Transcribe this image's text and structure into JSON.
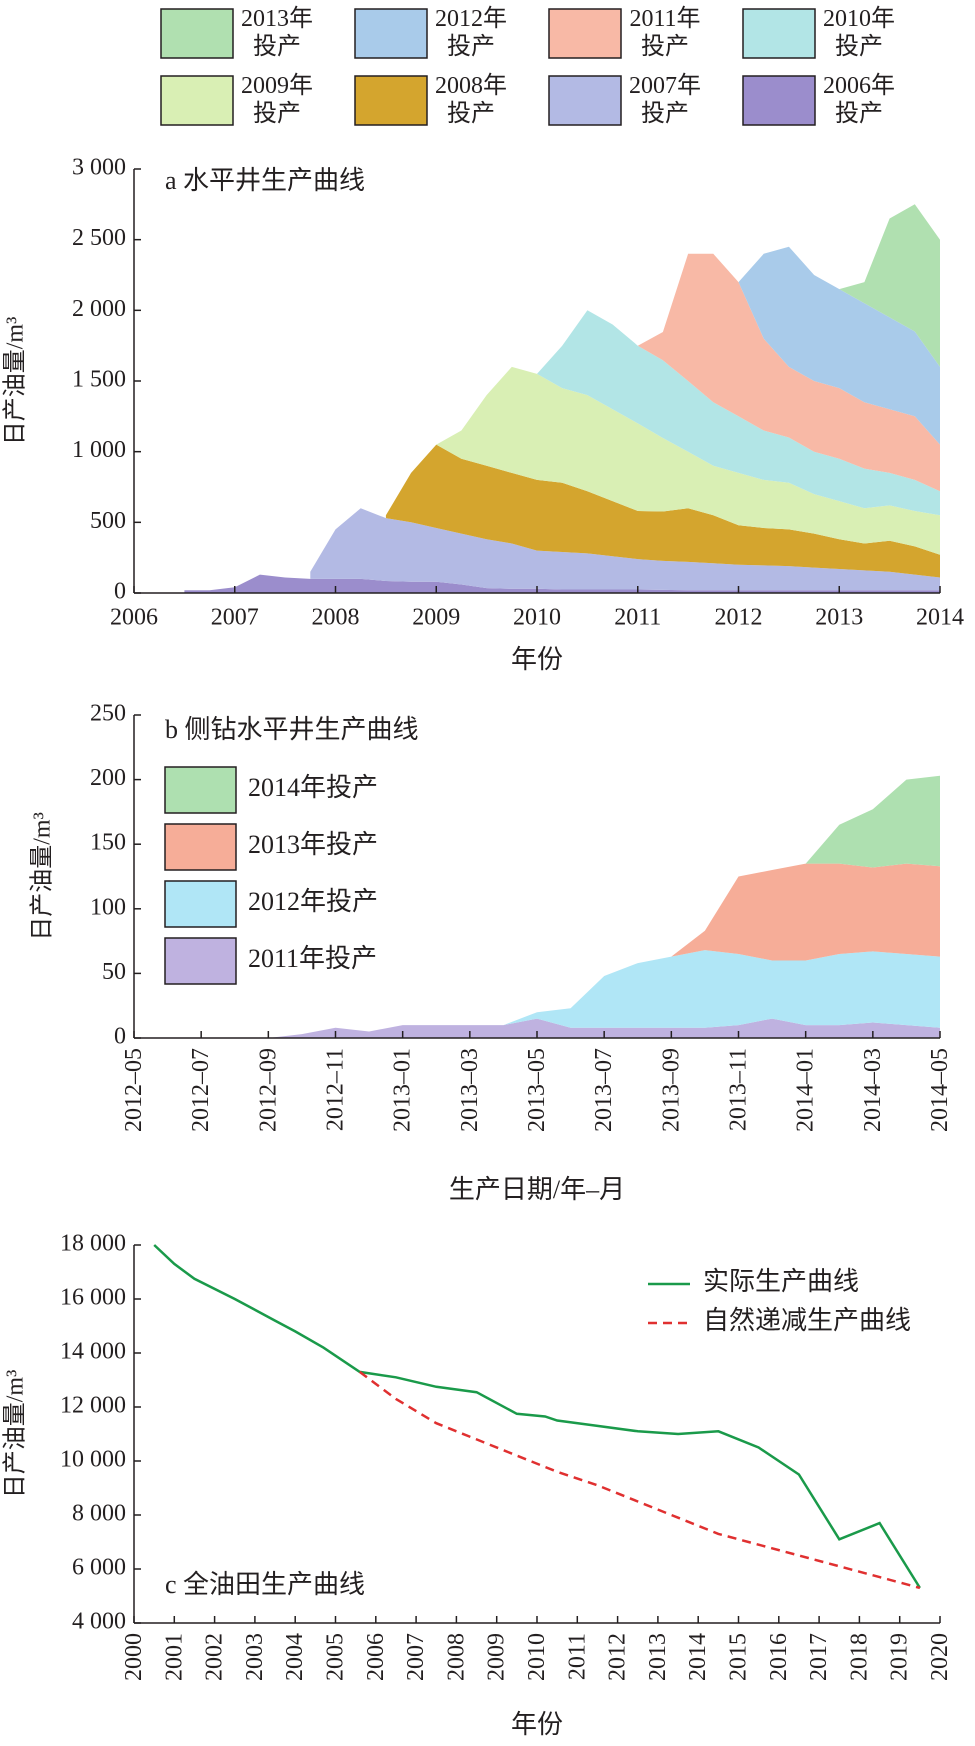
{
  "chart_data": [
    {
      "type": "area",
      "title": "a 水平井生产曲线",
      "xlabel": "年份",
      "ylabel": "日产油量/m³",
      "legend": "top",
      "x": [
        2006,
        2006.25,
        2006.5,
        2006.75,
        2007,
        2007.25,
        2007.5,
        2007.75,
        2008,
        2008.25,
        2008.5,
        2008.75,
        2009,
        2009.25,
        2009.5,
        2009.75,
        2010,
        2010.25,
        2010.5,
        2010.75,
        2011,
        2011.25,
        2011.5,
        2011.75,
        2012,
        2012.25,
        2012.5,
        2012.75,
        2013,
        2013.25,
        2013.5,
        2013.75,
        2014
      ],
      "xlim": [
        2006,
        2014
      ],
      "xticks": [
        2006,
        2007,
        2008,
        2009,
        2010,
        2011,
        2012,
        2013,
        2014
      ],
      "ylim": [
        0,
        3000
      ],
      "yticks": [
        0,
        500,
        {
          "value": 1000,
          "label": "1 000"
        },
        {
          "value": 1500,
          "label": "1 500"
        },
        {
          "value": 2000,
          "label": "2 000"
        },
        {
          "value": 2500,
          "label": "2 500"
        },
        {
          "value": 3000,
          "label": "3 000"
        }
      ],
      "series": [
        {
          "name": "2013年投产",
          "color": "#b0e0b0",
          "values": [
            null,
            null,
            null,
            null,
            null,
            null,
            null,
            null,
            null,
            null,
            null,
            null,
            null,
            null,
            null,
            null,
            null,
            null,
            null,
            null,
            null,
            null,
            null,
            null,
            null,
            null,
            null,
            null,
            0,
            150,
            700,
            900,
            900
          ]
        },
        {
          "name": "2012年投产",
          "color": "#a9cbea",
          "values": [
            null,
            null,
            null,
            null,
            null,
            null,
            null,
            null,
            null,
            null,
            null,
            null,
            null,
            null,
            null,
            null,
            null,
            null,
            null,
            null,
            null,
            null,
            null,
            null,
            0,
            600,
            850,
            750,
            700,
            700,
            650,
            600,
            550
          ]
        },
        {
          "name": "2011年投产",
          "color": "#f8b9a6",
          "values": [
            null,
            null,
            null,
            null,
            null,
            null,
            null,
            null,
            null,
            null,
            null,
            null,
            null,
            null,
            null,
            null,
            null,
            null,
            null,
            null,
            0,
            200,
            900,
            1050,
            950,
            650,
            500,
            500,
            500,
            470,
            450,
            450,
            330
          ]
        },
        {
          "name": "2010年投产",
          "color": "#b2e5e6",
          "values": [
            null,
            null,
            null,
            null,
            null,
            null,
            null,
            null,
            null,
            null,
            null,
            null,
            null,
            null,
            null,
            null,
            0,
            300,
            600,
            600,
            550,
            550,
            500,
            450,
            400,
            350,
            320,
            300,
            300,
            280,
            230,
            220,
            170
          ]
        },
        {
          "name": "2009年投产",
          "color": "#d9efb4",
          "values": [
            null,
            null,
            null,
            null,
            null,
            null,
            null,
            null,
            null,
            null,
            null,
            null,
            0,
            200,
            500,
            750,
            750,
            670,
            680,
            650,
            620,
            520,
            400,
            350,
            370,
            340,
            330,
            280,
            270,
            250,
            250,
            250,
            280
          ]
        },
        {
          "name": "2008年投产",
          "color": "#d4a52e",
          "values": [
            null,
            null,
            null,
            null,
            null,
            null,
            null,
            null,
            null,
            null,
            20,
            350,
            590,
            530,
            520,
            500,
            500,
            490,
            440,
            390,
            340,
            350,
            380,
            340,
            280,
            265,
            260,
            240,
            210,
            190,
            220,
            200,
            160
          ]
        },
        {
          "name": "2007年投产",
          "color": "#b3bae4",
          "values": [
            null,
            null,
            null,
            null,
            null,
            null,
            null,
            50,
            350,
            500,
            445,
            420,
            380,
            360,
            345,
            320,
            270,
            265,
            255,
            235,
            215,
            205,
            200,
            190,
            180,
            175,
            170,
            160,
            150,
            140,
            130,
            110,
            90
          ]
        },
        {
          "name": "2006年投产",
          "color": "#9b8dcc",
          "values": [
            null,
            null,
            20,
            20,
            40,
            130,
            110,
            100,
            100,
            100,
            85,
            80,
            80,
            60,
            35,
            30,
            30,
            25,
            25,
            25,
            25,
            22,
            20,
            20,
            20,
            20,
            20,
            20,
            20,
            20,
            20,
            20,
            20
          ]
        }
      ]
    },
    {
      "type": "area",
      "title": "b 侧钻水平井生产曲线",
      "xlabel": "生产日期/年–月",
      "ylabel": "日产油量/m³",
      "legend": "upper left",
      "categories": [
        "2012–05",
        null,
        "2012–07",
        null,
        "2012–09",
        null,
        "2012–11",
        null,
        "2013–01",
        null,
        "2013–03",
        null,
        "2013–05",
        null,
        "2013–07",
        null,
        "2013–09",
        null,
        "2013–11",
        null,
        "2014–01",
        null,
        "2014–03",
        null,
        "2014–05"
      ],
      "ylim": [
        0,
        250
      ],
      "yticks": [
        0,
        50,
        100,
        150,
        200,
        250
      ],
      "series": [
        {
          "name": "2014年投产",
          "color": "#aee0b0",
          "values": [
            null,
            null,
            null,
            null,
            null,
            null,
            null,
            null,
            null,
            null,
            null,
            null,
            null,
            null,
            null,
            null,
            null,
            null,
            null,
            null,
            0,
            30,
            45,
            65,
            70
          ]
        },
        {
          "name": "2013年投产",
          "color": "#f6ad98",
          "values": [
            null,
            null,
            null,
            null,
            null,
            null,
            null,
            null,
            null,
            null,
            null,
            null,
            null,
            null,
            null,
            null,
            0,
            15,
            60,
            70,
            75,
            70,
            65,
            70,
            70
          ]
        },
        {
          "name": "2012年投产",
          "color": "#b0e6f6",
          "values": [
            null,
            null,
            null,
            null,
            null,
            null,
            null,
            null,
            null,
            null,
            null,
            0,
            5,
            15,
            40,
            50,
            55,
            60,
            55,
            45,
            50,
            55,
            55,
            55,
            55
          ]
        },
        {
          "name": "2011年投产",
          "color": "#bfb2e0",
          "values": [
            null,
            null,
            null,
            null,
            0,
            3,
            8,
            5,
            10,
            10,
            10,
            10,
            15,
            8,
            8,
            8,
            8,
            8,
            10,
            15,
            10,
            10,
            12,
            10,
            8
          ]
        }
      ]
    },
    {
      "type": "line",
      "title": "c 全油田生产曲线",
      "xlabel": "年份",
      "ylabel": "日产油量/m³",
      "legend": "upper right",
      "xlim": [
        2000,
        2020
      ],
      "xticks": [
        2000,
        2001,
        2002,
        2003,
        2004,
        2005,
        2006,
        2007,
        2008,
        2009,
        2010,
        2011,
        2012,
        2013,
        2014,
        2015,
        2016,
        2017,
        2018,
        2019,
        2020
      ],
      "ylim": [
        4000,
        18000
      ],
      "yticks": [
        {
          "value": 4000,
          "label": "4 000"
        },
        {
          "value": 6000,
          "label": "6 000"
        },
        {
          "value": 8000,
          "label": "8 000"
        },
        {
          "value": 10000,
          "label": "10 000"
        },
        {
          "value": 12000,
          "label": "12 000"
        },
        {
          "value": 14000,
          "label": "14 000"
        },
        {
          "value": 16000,
          "label": "16 000"
        },
        {
          "value": 18000,
          "label": "18 000"
        }
      ],
      "series": [
        {
          "name": "实际生产曲线",
          "color": "#1a9a4a",
          "dashed": false,
          "x": [
            2000.5,
            2001,
            2001.5,
            2002.5,
            2003.5,
            2004,
            2004.7,
            2005.6,
            2006.5,
            2007.5,
            2008.5,
            2009.5,
            2010.2,
            2010.5,
            2011.5,
            2012.5,
            2013.5,
            2014.5,
            2015.5,
            2016.5,
            2017.5,
            2018.5,
            2019.5
          ],
          "values": [
            18000,
            17300,
            16750,
            16000,
            15200,
            14800,
            14200,
            13300,
            13100,
            12750,
            12550,
            11750,
            11650,
            11500,
            11300,
            11100,
            11000,
            11100,
            10500,
            9500,
            7100,
            7700,
            5300
          ]
        },
        {
          "name": "自然递减生产曲线",
          "color": "#e03030",
          "dashed": true,
          "x": [
            2005.6,
            2006.5,
            2007.5,
            2008.5,
            2009.5,
            2010.5,
            2011.5,
            2012.5,
            2013.5,
            2014.5,
            2015.5,
            2016.5,
            2017.5,
            2018.5,
            2019.5
          ],
          "values": [
            13300,
            12300,
            11400,
            10800,
            10200,
            9600,
            9100,
            8500,
            7900,
            7300,
            6900,
            6500,
            6100,
            5700,
            5300
          ]
        }
      ]
    }
  ]
}
